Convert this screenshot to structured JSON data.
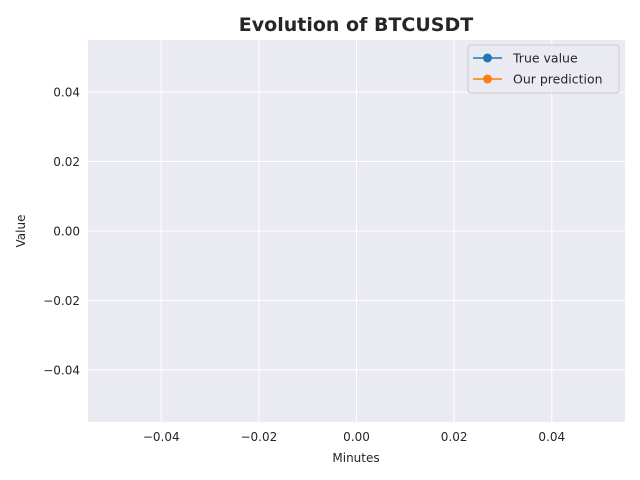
{
  "chart_data": {
    "type": "line",
    "title": "Evolution of BTCUSDT",
    "xlabel": "Minutes",
    "ylabel": "Value",
    "xlim": [
      -0.055,
      0.055
    ],
    "ylim": [
      -0.055,
      0.055
    ],
    "x_ticks": [
      -0.04,
      -0.02,
      0.0,
      0.02,
      0.04
    ],
    "y_ticks": [
      -0.04,
      -0.02,
      0.0,
      0.02,
      0.04
    ],
    "x_tick_labels": [
      "−0.04",
      "−0.02",
      "0.00",
      "0.02",
      "0.04"
    ],
    "y_tick_labels": [
      "−0.04",
      "−0.02",
      "0.00",
      "0.02",
      "0.04"
    ],
    "grid": true,
    "legend_position": "top-right",
    "series": [
      {
        "name": "True value",
        "color": "#1f77b4",
        "marker": "circle",
        "x": [],
        "y": []
      },
      {
        "name": "Our prediction",
        "color": "#ff7f0e",
        "marker": "circle",
        "x": [],
        "y": []
      }
    ]
  },
  "colors": {
    "plot_background": "#eaeaf2",
    "grid": "#ffffff"
  }
}
